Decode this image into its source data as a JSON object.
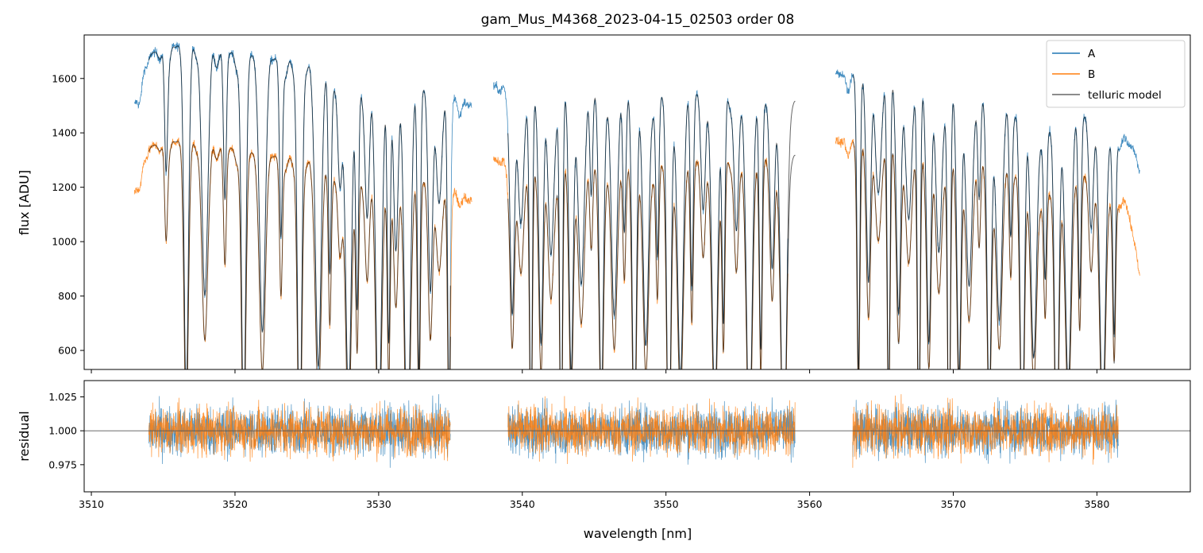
{
  "chart_data": {
    "type": "line",
    "title": "gam_Mus_M4368_2023-04-15_02503  order 08",
    "xlabel": "wavelength [nm]",
    "xlim": [
      3509.5,
      3586.5
    ],
    "x_ticks": [
      3510,
      3520,
      3530,
      3540,
      3550,
      3560,
      3570,
      3580
    ],
    "legend": {
      "placement": "top-right",
      "entries": [
        "A",
        "B",
        "telluric model"
      ]
    },
    "colors": {
      "A": "#1f77b4",
      "B": "#ff7f0e",
      "telluric_model": "#000000",
      "reference_line": "#555555"
    },
    "panels": [
      {
        "name": "flux",
        "ylabel": "flux [ADU]",
        "ylim": [
          530,
          1760
        ],
        "y_ticks": [
          600,
          800,
          1000,
          1200,
          1400,
          1600
        ],
        "series": [
          {
            "name": "A",
            "segments": [
              [
                3513.0,
                3536.5
              ],
              [
                3538.0,
                3558.5
              ],
              [
                3561.8,
                3583.0
              ]
            ],
            "continuum_x": [
              3513.0,
              3514.0,
              3516.0,
              3519.0,
              3522.0,
              3526.0,
              3530.0,
              3534.0,
              3536.5,
              3538.0,
              3545.0,
              3552.0,
              3558.5,
              3561.8,
              3566.0,
              3570.0,
              3574.0,
              3576.0,
              3579.0,
              3582.0,
              3583.0
            ],
            "continuum_y": [
              1500,
              1690,
              1720,
              1700,
              1680,
              1640,
              1590,
              1560,
              1500,
              1570,
              1560,
              1550,
              1500,
              1620,
              1600,
              1570,
              1500,
              1420,
              1470,
              1380,
              1300
            ]
          },
          {
            "name": "B",
            "segments": [
              [
                3513.0,
                3536.5
              ],
              [
                3538.0,
                3558.5
              ],
              [
                3561.8,
                3583.0
              ]
            ],
            "continuum_x": [
              3513.0,
              3514.0,
              3516.0,
              3519.0,
              3522.0,
              3526.0,
              3530.0,
              3534.0,
              3536.5,
              3538.0,
              3545.0,
              3552.0,
              3558.5,
              3561.8,
              3566.0,
              3570.0,
              3574.0,
              3576.0,
              3579.0,
              3582.0,
              3583.0
            ],
            "continuum_y": [
              1180,
              1350,
              1370,
              1350,
              1320,
              1290,
              1250,
              1220,
              1150,
              1300,
              1290,
              1300,
              1310,
              1370,
              1360,
              1320,
              1280,
              1180,
              1250,
              1150,
              900
            ]
          },
          {
            "name": "telluric model",
            "segments": [
              [
                3514.0,
                3535.0
              ],
              [
                3539.0,
                3559.0
              ],
              [
                3563.0,
                3581.5
              ]
            ],
            "absorption_lines": [
              3515.2,
              3516.6,
              3517.9,
              3519.3,
              3520.6,
              3521.9,
              3523.2,
              3524.5,
              3525.8,
              3526.6,
              3527.3,
              3527.9,
              3528.5,
              3529.2,
              3530.0,
              3530.7,
              3531.2,
              3532.0,
              3532.8,
              3533.6,
              3534.2,
              3534.9,
              3539.3,
              3539.9,
              3540.6,
              3541.3,
              3542.0,
              3542.7,
              3543.4,
              3544.1,
              3544.8,
              3545.5,
              3546.4,
              3547.1,
              3547.8,
              3548.6,
              3549.4,
              3550.2,
              3551.0,
              3551.8,
              3552.6,
              3553.4,
              3554.0,
              3554.9,
              3555.8,
              3556.6,
              3557.4,
              3558.2,
              3563.4,
              3564.1,
              3564.8,
              3565.5,
              3566.2,
              3566.9,
              3567.6,
              3568.3,
              3569.0,
              3569.7,
              3570.4,
              3571.1,
              3571.8,
              3572.5,
              3573.2,
              3574.0,
              3574.8,
              3575.6,
              3576.4,
              3577.2,
              3578.0,
              3578.8,
              3579.6,
              3580.4,
              3581.2
            ]
          }
        ]
      },
      {
        "name": "residual",
        "ylabel": "residual",
        "ylim": [
          0.955,
          1.037
        ],
        "y_ticks": [
          0.975,
          1.0,
          1.025
        ],
        "y_tick_labels": [
          "0.975",
          "1.000",
          "1.025"
        ],
        "reference": 1.0,
        "series": [
          {
            "name": "A",
            "segments": [
              [
                3514.0,
                3535.0
              ],
              [
                3539.0,
                3559.0
              ],
              [
                3563.0,
                3581.5
              ]
            ],
            "center": 1.0
          },
          {
            "name": "B",
            "segments": [
              [
                3514.0,
                3535.0
              ],
              [
                3539.0,
                3559.0
              ],
              [
                3563.0,
                3581.5
              ]
            ],
            "center": 1.0
          }
        ]
      }
    ]
  }
}
